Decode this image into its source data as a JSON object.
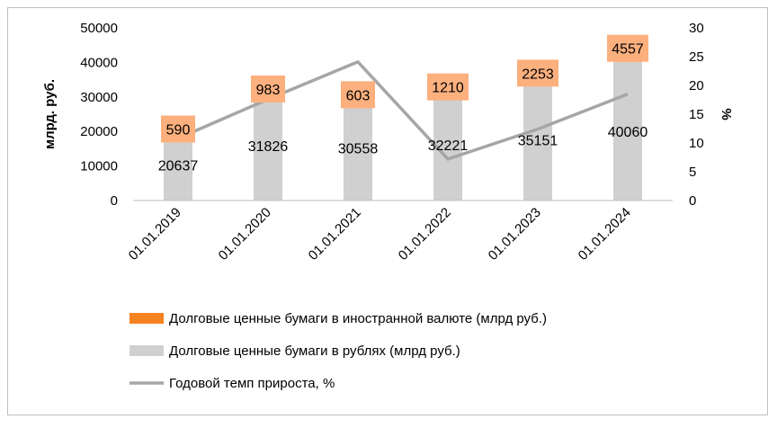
{
  "chart_data": {
    "type": "bar",
    "categories": [
      "01.01.2019",
      "01.01.2020",
      "01.01.2021",
      "01.01.2022",
      "01.01.2023",
      "01.01.2024"
    ],
    "series": [
      {
        "name": "Долговые ценные бумаги в рублях (млрд  руб.)",
        "type": "bar",
        "axis": "left",
        "values": [
          20637,
          31826,
          30558,
          32221,
          35151,
          40060
        ],
        "color": "#d0d0d0"
      },
      {
        "name": "Долговые ценные бумаги в иностранной валюте (млрд  руб.)",
        "type": "bar",
        "axis": "left",
        "values": [
          590,
          983,
          603,
          1210,
          2253,
          4557
        ],
        "color": "#fcb07e",
        "legend_color": "#f58220"
      },
      {
        "name": "Годовой темп прироста, %",
        "type": "line",
        "axis": "right",
        "values": [
          10.8,
          17.6,
          24.1,
          7.2,
          12.4,
          18.5
        ],
        "color": "#a6a6a6"
      }
    ],
    "ylabel": "млрд. руб.",
    "y2label": "%",
    "ylim": [
      0,
      50000
    ],
    "y2lim": [
      0,
      30
    ],
    "yticks": [
      "0",
      "10000",
      "20000",
      "30000",
      "40000",
      "50000"
    ],
    "y2ticks": [
      "0",
      "5",
      "10",
      "15",
      "20",
      "25",
      "30"
    ],
    "legend": [
      "Долговые ценные бумаги в иностранной валюте (млрд  руб.)",
      "Долговые ценные бумаги в рублях (млрд  руб.)",
      "Годовой темп прироста, %"
    ],
    "legend_position": "bottom",
    "grid": false
  }
}
